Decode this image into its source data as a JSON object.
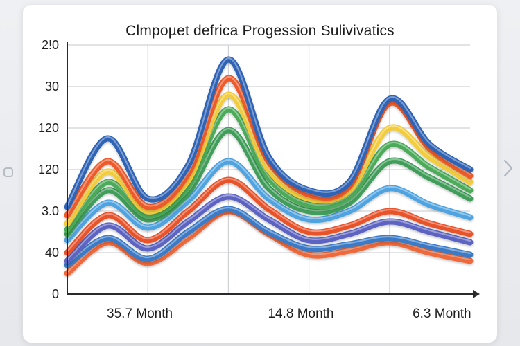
{
  "chart_data": {
    "type": "line",
    "title": "Clmpoµet defrica Progession Sulivivatics",
    "xlabel": "",
    "ylabel": "",
    "y_tick_labels": [
      "0",
      "40",
      "3.0",
      "120",
      "120",
      "30",
      "2!0"
    ],
    "x_tick_labels": [
      "35.7 Month",
      "14.8 Month",
      "6.3 Month"
    ],
    "x": [
      0,
      1,
      2,
      3,
      4,
      5,
      6,
      7,
      8,
      9,
      10
    ],
    "ylim": [
      0,
      6
    ],
    "grid": true,
    "series": [
      {
        "name": "dark blue",
        "color": "#2f63b5",
        "values": [
          2.1,
          3.75,
          2.3,
          3.1,
          5.65,
          3.3,
          2.5,
          2.7,
          4.7,
          3.6,
          3.0
        ]
      },
      {
        "name": "orange",
        "color": "#ee5a2c",
        "values": [
          1.9,
          3.2,
          2.1,
          2.9,
          5.2,
          3.2,
          2.4,
          2.6,
          4.6,
          3.5,
          2.85
        ]
      },
      {
        "name": "yellow",
        "color": "#f3cc3a",
        "values": [
          1.7,
          2.95,
          2.0,
          2.75,
          4.8,
          3.0,
          2.3,
          2.5,
          4.0,
          3.3,
          2.7
        ]
      },
      {
        "name": "green",
        "color": "#4bab58",
        "values": [
          1.55,
          2.7,
          1.9,
          2.6,
          4.45,
          2.8,
          2.15,
          2.35,
          3.6,
          3.05,
          2.5
        ]
      },
      {
        "name": "mid green",
        "color": "#3f9e5a",
        "values": [
          1.45,
          2.5,
          1.8,
          2.45,
          3.95,
          2.55,
          2.0,
          2.2,
          3.2,
          2.8,
          2.3
        ]
      },
      {
        "name": "light blue",
        "color": "#4fa3e0",
        "values": [
          1.3,
          2.2,
          1.6,
          2.25,
          3.2,
          2.3,
          1.8,
          2.0,
          2.55,
          2.15,
          1.85
        ]
      },
      {
        "name": "red orange",
        "color": "#e8522a",
        "values": [
          1.0,
          1.9,
          1.3,
          2.0,
          2.75,
          2.05,
          1.5,
          1.65,
          2.0,
          1.7,
          1.45
        ]
      },
      {
        "name": "purple blue",
        "color": "#5b63c2",
        "values": [
          0.8,
          1.65,
          1.1,
          1.75,
          2.35,
          1.8,
          1.3,
          1.45,
          1.75,
          1.5,
          1.25
        ]
      },
      {
        "name": "blue",
        "color": "#3a7ac6",
        "values": [
          0.7,
          1.35,
          0.85,
          1.5,
          2.05,
          1.5,
          1.1,
          1.2,
          1.35,
          1.15,
          0.95
        ]
      },
      {
        "name": "bottom orange",
        "color": "#f0693a",
        "values": [
          0.5,
          1.25,
          0.75,
          1.35,
          2.0,
          1.45,
          0.95,
          1.05,
          1.25,
          1.0,
          0.8
        ]
      }
    ]
  }
}
